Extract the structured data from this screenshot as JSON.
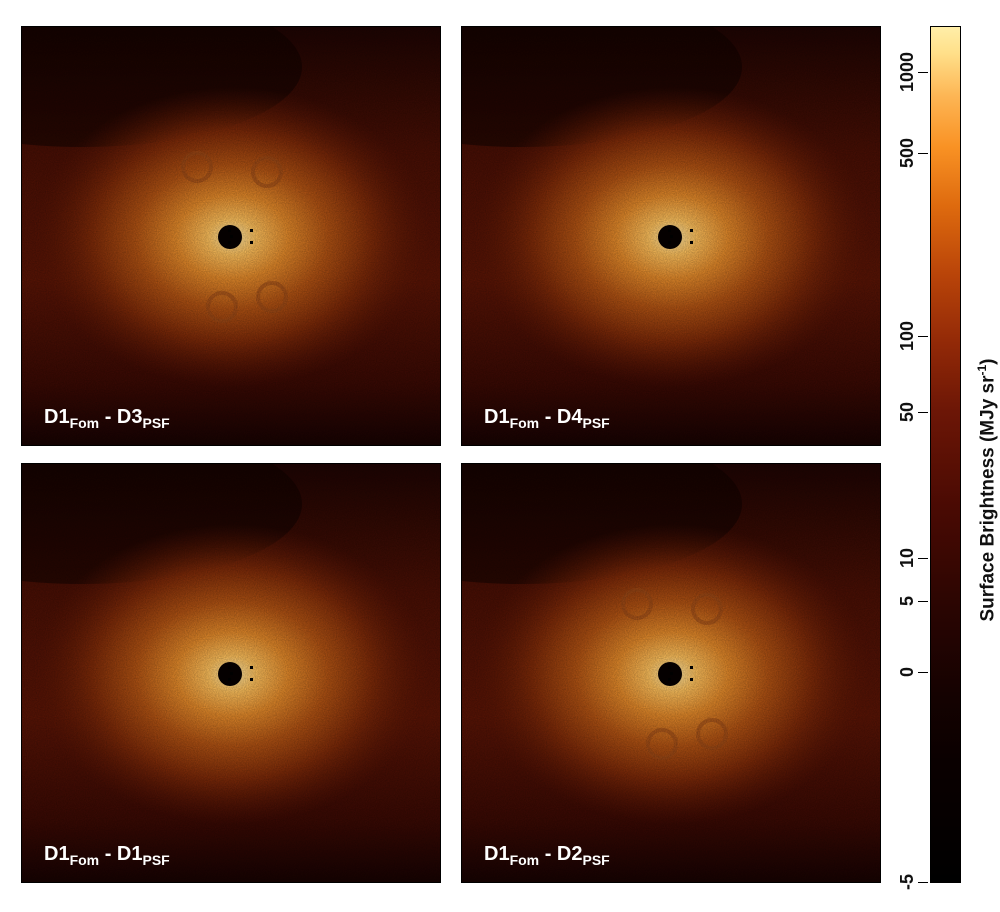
{
  "panels": [
    {
      "id": "top-left",
      "label_main": "D1",
      "label_sub1": "Fom",
      "label_mid": " - D3",
      "label_sub2": "PSF"
    },
    {
      "id": "top-right",
      "label_main": "D1",
      "label_sub1": "Fom",
      "label_mid": " - D4",
      "label_sub2": "PSF"
    },
    {
      "id": "bottom-left",
      "label_main": "D1",
      "label_sub1": "Fom",
      "label_mid": " - D1",
      "label_sub2": "PSF"
    },
    {
      "id": "bottom-right",
      "label_main": "D1",
      "label_sub1": "Fom",
      "label_mid": " - D2",
      "label_sub2": "PSF"
    }
  ],
  "colorbar": {
    "title_prefix": "Surface Brightness (MJy sr",
    "title_sup": "-1",
    "title_suffix": ")",
    "ticks": [
      "1000",
      "500",
      "100",
      "50",
      "10",
      "5",
      "0",
      "-5"
    ],
    "colormap": "black-red-orange-yellow (hot)"
  }
}
